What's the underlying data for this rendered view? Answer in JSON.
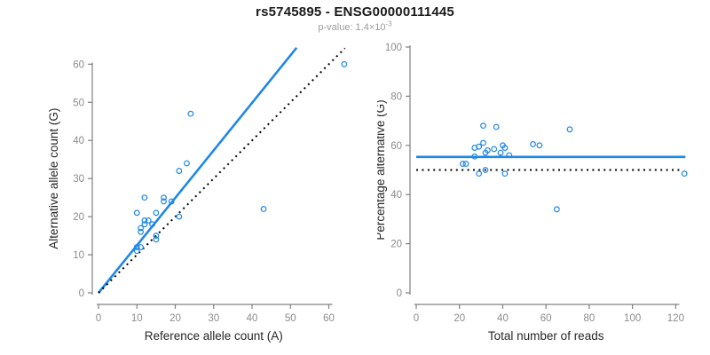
{
  "header": {
    "title": "rs5745895 - ENSG00000111445",
    "subtitle_base": "p-value: 1.4×10",
    "subtitle_exp": "-3"
  },
  "colors": {
    "accent_blue": "#1f87e8",
    "identity_black": "#000000",
    "axis_gray": "#808080",
    "tick_label_gray": "#8c8c8c",
    "axis_title_dark": "#262626",
    "title_black": "#1a1a1a",
    "subtitle_gray": "#9b9b9b"
  },
  "chart_data": [
    {
      "type": "scatter",
      "panel": "left",
      "xlabel": "Reference allele count (A)",
      "ylabel": "Alternative allele count (G)",
      "xlim": [
        0,
        64.5
      ],
      "ylim": [
        0,
        64.5
      ],
      "xticks": [
        0,
        10,
        20,
        30,
        40,
        50,
        60
      ],
      "yticks": [
        0,
        10,
        20,
        30,
        40,
        50,
        60
      ],
      "grid": false,
      "marker": "open-circle",
      "points": [
        [
          10,
          21
        ],
        [
          12,
          25
        ],
        [
          17,
          25
        ],
        [
          17,
          24
        ],
        [
          19,
          24
        ],
        [
          15,
          21
        ],
        [
          12,
          19
        ],
        [
          13,
          19
        ],
        [
          14,
          18
        ],
        [
          21,
          20
        ],
        [
          11,
          16
        ],
        [
          11,
          17
        ],
        [
          12,
          18
        ],
        [
          15,
          15
        ],
        [
          15,
          14
        ],
        [
          10,
          12
        ],
        [
          11,
          12
        ],
        [
          10,
          11
        ],
        [
          24,
          47
        ],
        [
          21,
          32
        ],
        [
          23,
          34
        ],
        [
          43,
          22
        ],
        [
          64,
          60
        ]
      ],
      "lines": [
        {
          "name": "regression-line",
          "style": "solid",
          "color_key": "accent_blue",
          "x1": 0,
          "y1": 0,
          "x2": 51.6,
          "y2": 64.3
        },
        {
          "name": "identity-line",
          "style": "dotted",
          "color_key": "identity_black",
          "x1": 0,
          "y1": 0,
          "x2": 64.2,
          "y2": 64.2
        }
      ]
    },
    {
      "type": "scatter",
      "panel": "right",
      "xlabel": "Total number of reads",
      "ylabel": "Percentage alternative (G)",
      "xlim": [
        0,
        126
      ],
      "ylim": [
        0,
        100
      ],
      "xticks": [
        0,
        20,
        40,
        60,
        80,
        100,
        120
      ],
      "yticks": [
        0,
        20,
        40,
        60,
        80,
        100
      ],
      "grid": false,
      "marker": "open-circle",
      "points": [
        [
          31,
          68
        ],
        [
          37,
          67.5
        ],
        [
          71,
          66.5
        ],
        [
          31,
          61
        ],
        [
          54,
          60.5
        ],
        [
          57,
          60
        ],
        [
          40,
          60
        ],
        [
          41,
          59
        ],
        [
          29,
          59.5
        ],
        [
          27,
          59
        ],
        [
          36,
          58.5
        ],
        [
          33,
          58
        ],
        [
          39,
          57
        ],
        [
          32,
          57
        ],
        [
          43,
          56
        ],
        [
          27,
          55.5
        ],
        [
          21.5,
          52.5
        ],
        [
          23,
          52.5
        ],
        [
          32,
          50
        ],
        [
          29,
          48.5
        ],
        [
          41,
          48.5
        ],
        [
          124,
          48.5
        ],
        [
          65,
          34
        ]
      ],
      "lines": [
        {
          "name": "mean-percentage-line",
          "style": "solid",
          "color_key": "accent_blue",
          "x1": 0,
          "y1": 55.3,
          "x2": 124.5,
          "y2": 55.3
        },
        {
          "name": "null-50-percent-line",
          "style": "dotted",
          "color_key": "identity_black",
          "x1": 0,
          "y1": 50,
          "x2": 122.5,
          "y2": 50
        }
      ]
    }
  ]
}
